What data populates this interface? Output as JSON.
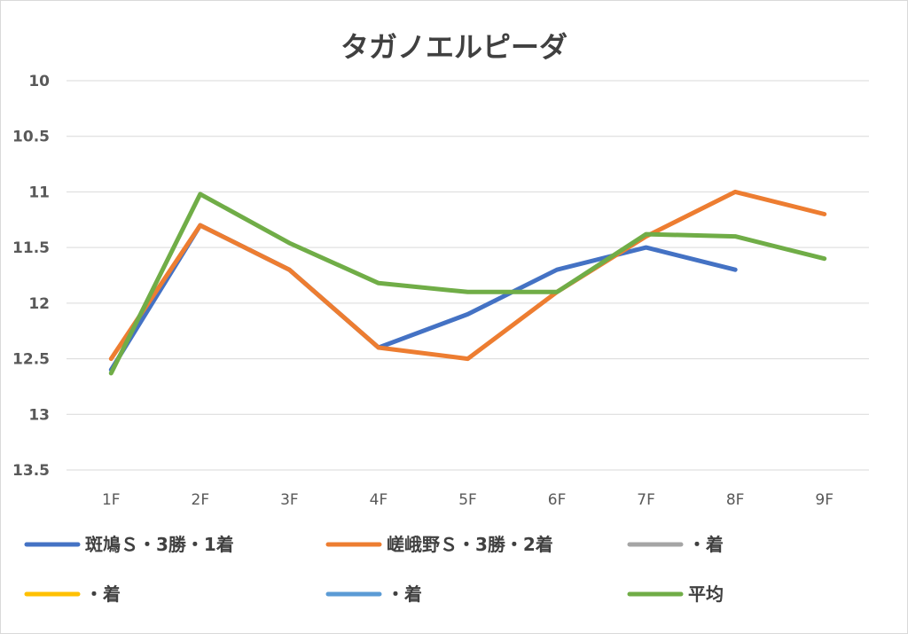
{
  "chart_data": {
    "type": "line",
    "title": "タガノエルピーダ",
    "xlabel": "",
    "ylabel": "",
    "categories": [
      "1F",
      "2F",
      "3F",
      "4F",
      "5F",
      "6F",
      "7F",
      "8F",
      "9F"
    ],
    "y_axis": {
      "min": 10,
      "max": 13.5,
      "reversed": true,
      "ticks": [
        10,
        10.5,
        11,
        11.5,
        12,
        12.5,
        13,
        13.5
      ],
      "tick_labels": [
        "10",
        "10.5",
        "11",
        "11.5",
        "12",
        "12.5",
        "13",
        "13.5"
      ]
    },
    "grid": true,
    "legend_position": "bottom",
    "series": [
      {
        "name": "斑鳩Ｓ・3勝・1着",
        "color": "#4472C4",
        "values": [
          12.6,
          11.3,
          11.7,
          12.4,
          12.1,
          11.7,
          11.5,
          11.7,
          null
        ]
      },
      {
        "name": "嵯峨野Ｓ・3勝・2着",
        "color": "#ED7D31",
        "values": [
          12.5,
          11.3,
          11.7,
          12.4,
          12.5,
          11.9,
          11.4,
          11.0,
          11.2
        ]
      },
      {
        "name": "・着",
        "color": "#A5A5A5",
        "values": [
          null,
          null,
          null,
          null,
          null,
          null,
          null,
          null,
          null
        ]
      },
      {
        "name": "・着",
        "color": "#FFC000",
        "values": [
          null,
          null,
          null,
          null,
          null,
          null,
          null,
          null,
          null
        ]
      },
      {
        "name": "・着",
        "color": "#5B9BD5",
        "values": [
          null,
          null,
          null,
          null,
          null,
          null,
          null,
          null,
          null
        ]
      },
      {
        "name": "平均",
        "color": "#70AD47",
        "values": [
          12.63,
          11.02,
          11.46,
          11.82,
          11.9,
          11.9,
          11.38,
          11.4,
          11.6
        ]
      }
    ]
  }
}
